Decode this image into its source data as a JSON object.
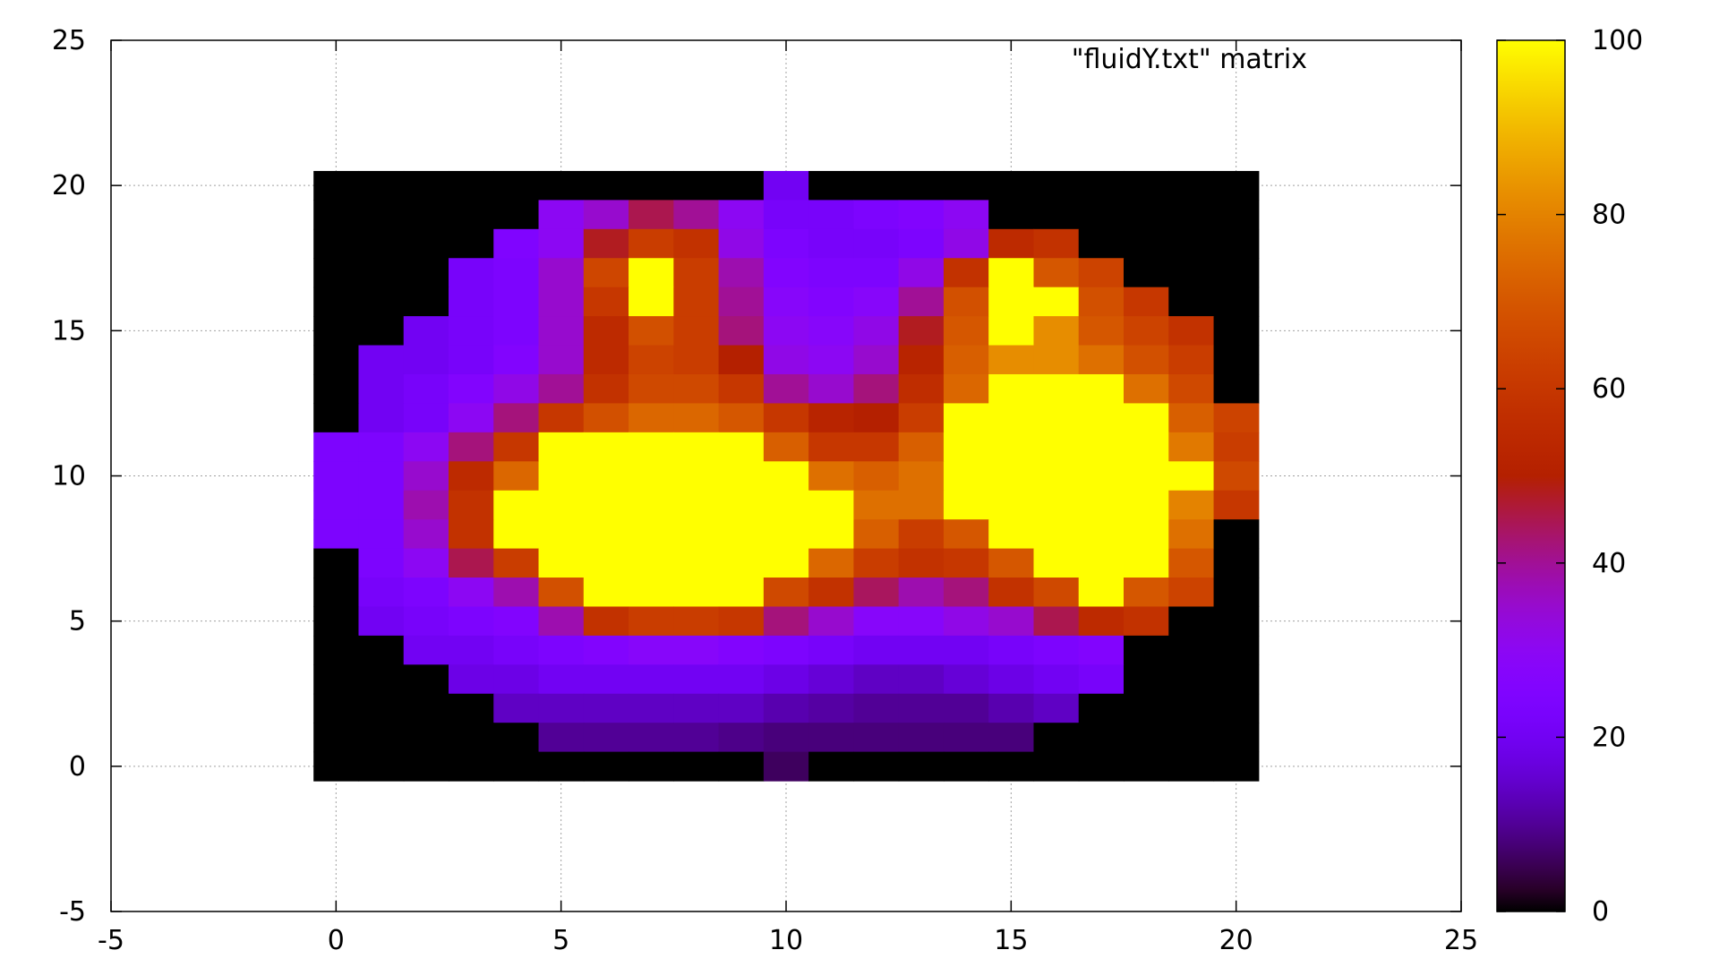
{
  "chart_data": {
    "type": "heatmap",
    "key_title": "\"fluidY.txt\" matrix",
    "xlim": [
      -5,
      25
    ],
    "ylim": [
      -5,
      25
    ],
    "x_ticks": [
      -5,
      0,
      5,
      10,
      15,
      20,
      25
    ],
    "y_ticks": [
      -5,
      0,
      5,
      10,
      15,
      20,
      25
    ],
    "grid": true,
    "colorbar": {
      "min": 0,
      "max": 100,
      "ticks": [
        0,
        20,
        40,
        60,
        80,
        100
      ],
      "palette": "gnuplot-default-pm3d"
    },
    "cols": 21,
    "rows": 21,
    "x_start": 0,
    "y_start": 0,
    "matrix_rows_from_y20_to_y0": [
      [
        0,
        0,
        0,
        0,
        0,
        0,
        0,
        0,
        0,
        0,
        20,
        0,
        0,
        0,
        0,
        0,
        0,
        0,
        0,
        0,
        0
      ],
      [
        0,
        0,
        0,
        0,
        0,
        30,
        35,
        45,
        40,
        30,
        22,
        22,
        24,
        26,
        30,
        0,
        0,
        0,
        0,
        0,
        0
      ],
      [
        0,
        0,
        0,
        0,
        25,
        30,
        48,
        62,
        58,
        32,
        24,
        22,
        22,
        24,
        32,
        55,
        58,
        0,
        0,
        0,
        0
      ],
      [
        0,
        0,
        0,
        22,
        24,
        35,
        65,
        100,
        62,
        38,
        26,
        24,
        24,
        32,
        58,
        100,
        70,
        64,
        0,
        0,
        0
      ],
      [
        0,
        0,
        0,
        22,
        24,
        35,
        60,
        100,
        62,
        40,
        28,
        26,
        28,
        40,
        68,
        100,
        100,
        68,
        60,
        0,
        0
      ],
      [
        0,
        0,
        20,
        22,
        24,
        35,
        55,
        68,
        62,
        42,
        30,
        28,
        32,
        48,
        70,
        100,
        82,
        70,
        64,
        58,
        0
      ],
      [
        0,
        20,
        20,
        22,
        26,
        35,
        55,
        64,
        62,
        50,
        32,
        30,
        35,
        52,
        72,
        82,
        82,
        76,
        68,
        62,
        0
      ],
      [
        0,
        20,
        22,
        26,
        32,
        40,
        58,
        66,
        66,
        60,
        40,
        35,
        42,
        56,
        74,
        100,
        100,
        100,
        76,
        66,
        0
      ],
      [
        0,
        20,
        22,
        30,
        42,
        60,
        68,
        74,
        74,
        70,
        60,
        52,
        50,
        62,
        100,
        100,
        100,
        100,
        100,
        72,
        64
      ],
      [
        24,
        24,
        30,
        42,
        60,
        100,
        100,
        100,
        100,
        100,
        72,
        60,
        60,
        72,
        100,
        100,
        100,
        100,
        100,
        78,
        62
      ],
      [
        24,
        24,
        35,
        55,
        74,
        100,
        100,
        100,
        100,
        100,
        100,
        76,
        72,
        76,
        100,
        100,
        100,
        100,
        100,
        100,
        66
      ],
      [
        24,
        24,
        38,
        58,
        100,
        100,
        100,
        100,
        100,
        100,
        100,
        100,
        76,
        76,
        100,
        100,
        100,
        100,
        100,
        80,
        60
      ],
      [
        24,
        24,
        35,
        58,
        100,
        100,
        100,
        100,
        100,
        100,
        100,
        100,
        72,
        62,
        70,
        100,
        100,
        100,
        100,
        76,
        0
      ],
      [
        0,
        24,
        30,
        45,
        62,
        100,
        100,
        100,
        100,
        100,
        100,
        74,
        62,
        58,
        60,
        70,
        100,
        100,
        100,
        70,
        0
      ],
      [
        0,
        22,
        24,
        30,
        38,
        68,
        100,
        100,
        100,
        100,
        66,
        58,
        44,
        38,
        42,
        58,
        66,
        100,
        70,
        64,
        0
      ],
      [
        0,
        20,
        22,
        24,
        26,
        38,
        58,
        62,
        62,
        60,
        42,
        35,
        28,
        28,
        32,
        35,
        45,
        55,
        58,
        0,
        0
      ],
      [
        0,
        0,
        20,
        20,
        22,
        24,
        26,
        28,
        28,
        26,
        24,
        22,
        20,
        20,
        20,
        22,
        24,
        26,
        0,
        0,
        0
      ],
      [
        0,
        0,
        0,
        18,
        18,
        20,
        20,
        20,
        20,
        20,
        18,
        16,
        14,
        14,
        16,
        18,
        20,
        22,
        0,
        0,
        0
      ],
      [
        0,
        0,
        0,
        0,
        14,
        14,
        14,
        14,
        14,
        14,
        12,
        11,
        10,
        10,
        10,
        12,
        14,
        0,
        0,
        0,
        0
      ],
      [
        0,
        0,
        0,
        0,
        0,
        10,
        10,
        10,
        10,
        9,
        8,
        8,
        8,
        8,
        8,
        8,
        0,
        0,
        0,
        0,
        0
      ],
      [
        0,
        0,
        0,
        0,
        0,
        0,
        0,
        0,
        0,
        0,
        6,
        0,
        0,
        0,
        0,
        0,
        0,
        0,
        0,
        0,
        0
      ]
    ]
  }
}
